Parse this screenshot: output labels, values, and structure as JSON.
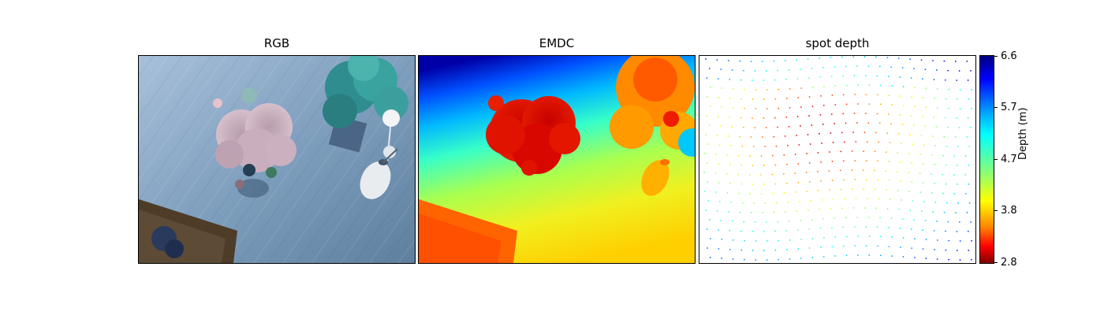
{
  "panels": [
    {
      "title": "RGB"
    },
    {
      "title": "EMDC"
    },
    {
      "title": "spot depth"
    }
  ],
  "colorbar": {
    "label": "Depth (m)",
    "ticks": [
      "6.6",
      "5.7",
      "4.7",
      "3.8",
      "2.8"
    ],
    "colormap": "jet-reversed",
    "range": [
      2.8,
      6.6
    ]
  },
  "colors": {
    "floor": "#8aa8c4",
    "flower": "#c8a8b8",
    "plant": "#3a9a9a",
    "sofa": "#4a3a28"
  }
}
